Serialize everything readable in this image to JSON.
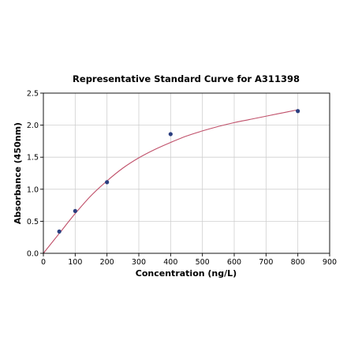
{
  "chart_data": {
    "type": "scatter",
    "title": "Representative Standard Curve for A311398",
    "xlabel": "Concentration (ng/L)",
    "ylabel": "Absorbance (450nm)",
    "xlim": [
      0,
      900
    ],
    "ylim": [
      0,
      2.5
    ],
    "xticks": [
      "0",
      "100",
      "200",
      "300",
      "400",
      "500",
      "600",
      "700",
      "800",
      "900"
    ],
    "yticks": [
      "0.0",
      "0.5",
      "1.0",
      "1.5",
      "2.0",
      "2.5"
    ],
    "grid": true,
    "series": [
      {
        "kind": "points",
        "color": "#2b3f80",
        "points": [
          {
            "x": 50,
            "y": 0.34
          },
          {
            "x": 100,
            "y": 0.66
          },
          {
            "x": 200,
            "y": 1.11
          },
          {
            "x": 400,
            "y": 1.86
          },
          {
            "x": 800,
            "y": 2.22
          }
        ]
      },
      {
        "kind": "fit-curve",
        "color": "#c0506a",
        "points": [
          {
            "x": 0,
            "y": 0.0
          },
          {
            "x": 50,
            "y": 0.31
          },
          {
            "x": 100,
            "y": 0.62
          },
          {
            "x": 150,
            "y": 0.9
          },
          {
            "x": 200,
            "y": 1.13
          },
          {
            "x": 250,
            "y": 1.33
          },
          {
            "x": 300,
            "y": 1.49
          },
          {
            "x": 350,
            "y": 1.62
          },
          {
            "x": 400,
            "y": 1.73
          },
          {
            "x": 450,
            "y": 1.83
          },
          {
            "x": 500,
            "y": 1.91
          },
          {
            "x": 550,
            "y": 1.98
          },
          {
            "x": 600,
            "y": 2.04
          },
          {
            "x": 650,
            "y": 2.09
          },
          {
            "x": 700,
            "y": 2.14
          },
          {
            "x": 750,
            "y": 2.19
          },
          {
            "x": 800,
            "y": 2.24
          }
        ]
      }
    ]
  }
}
